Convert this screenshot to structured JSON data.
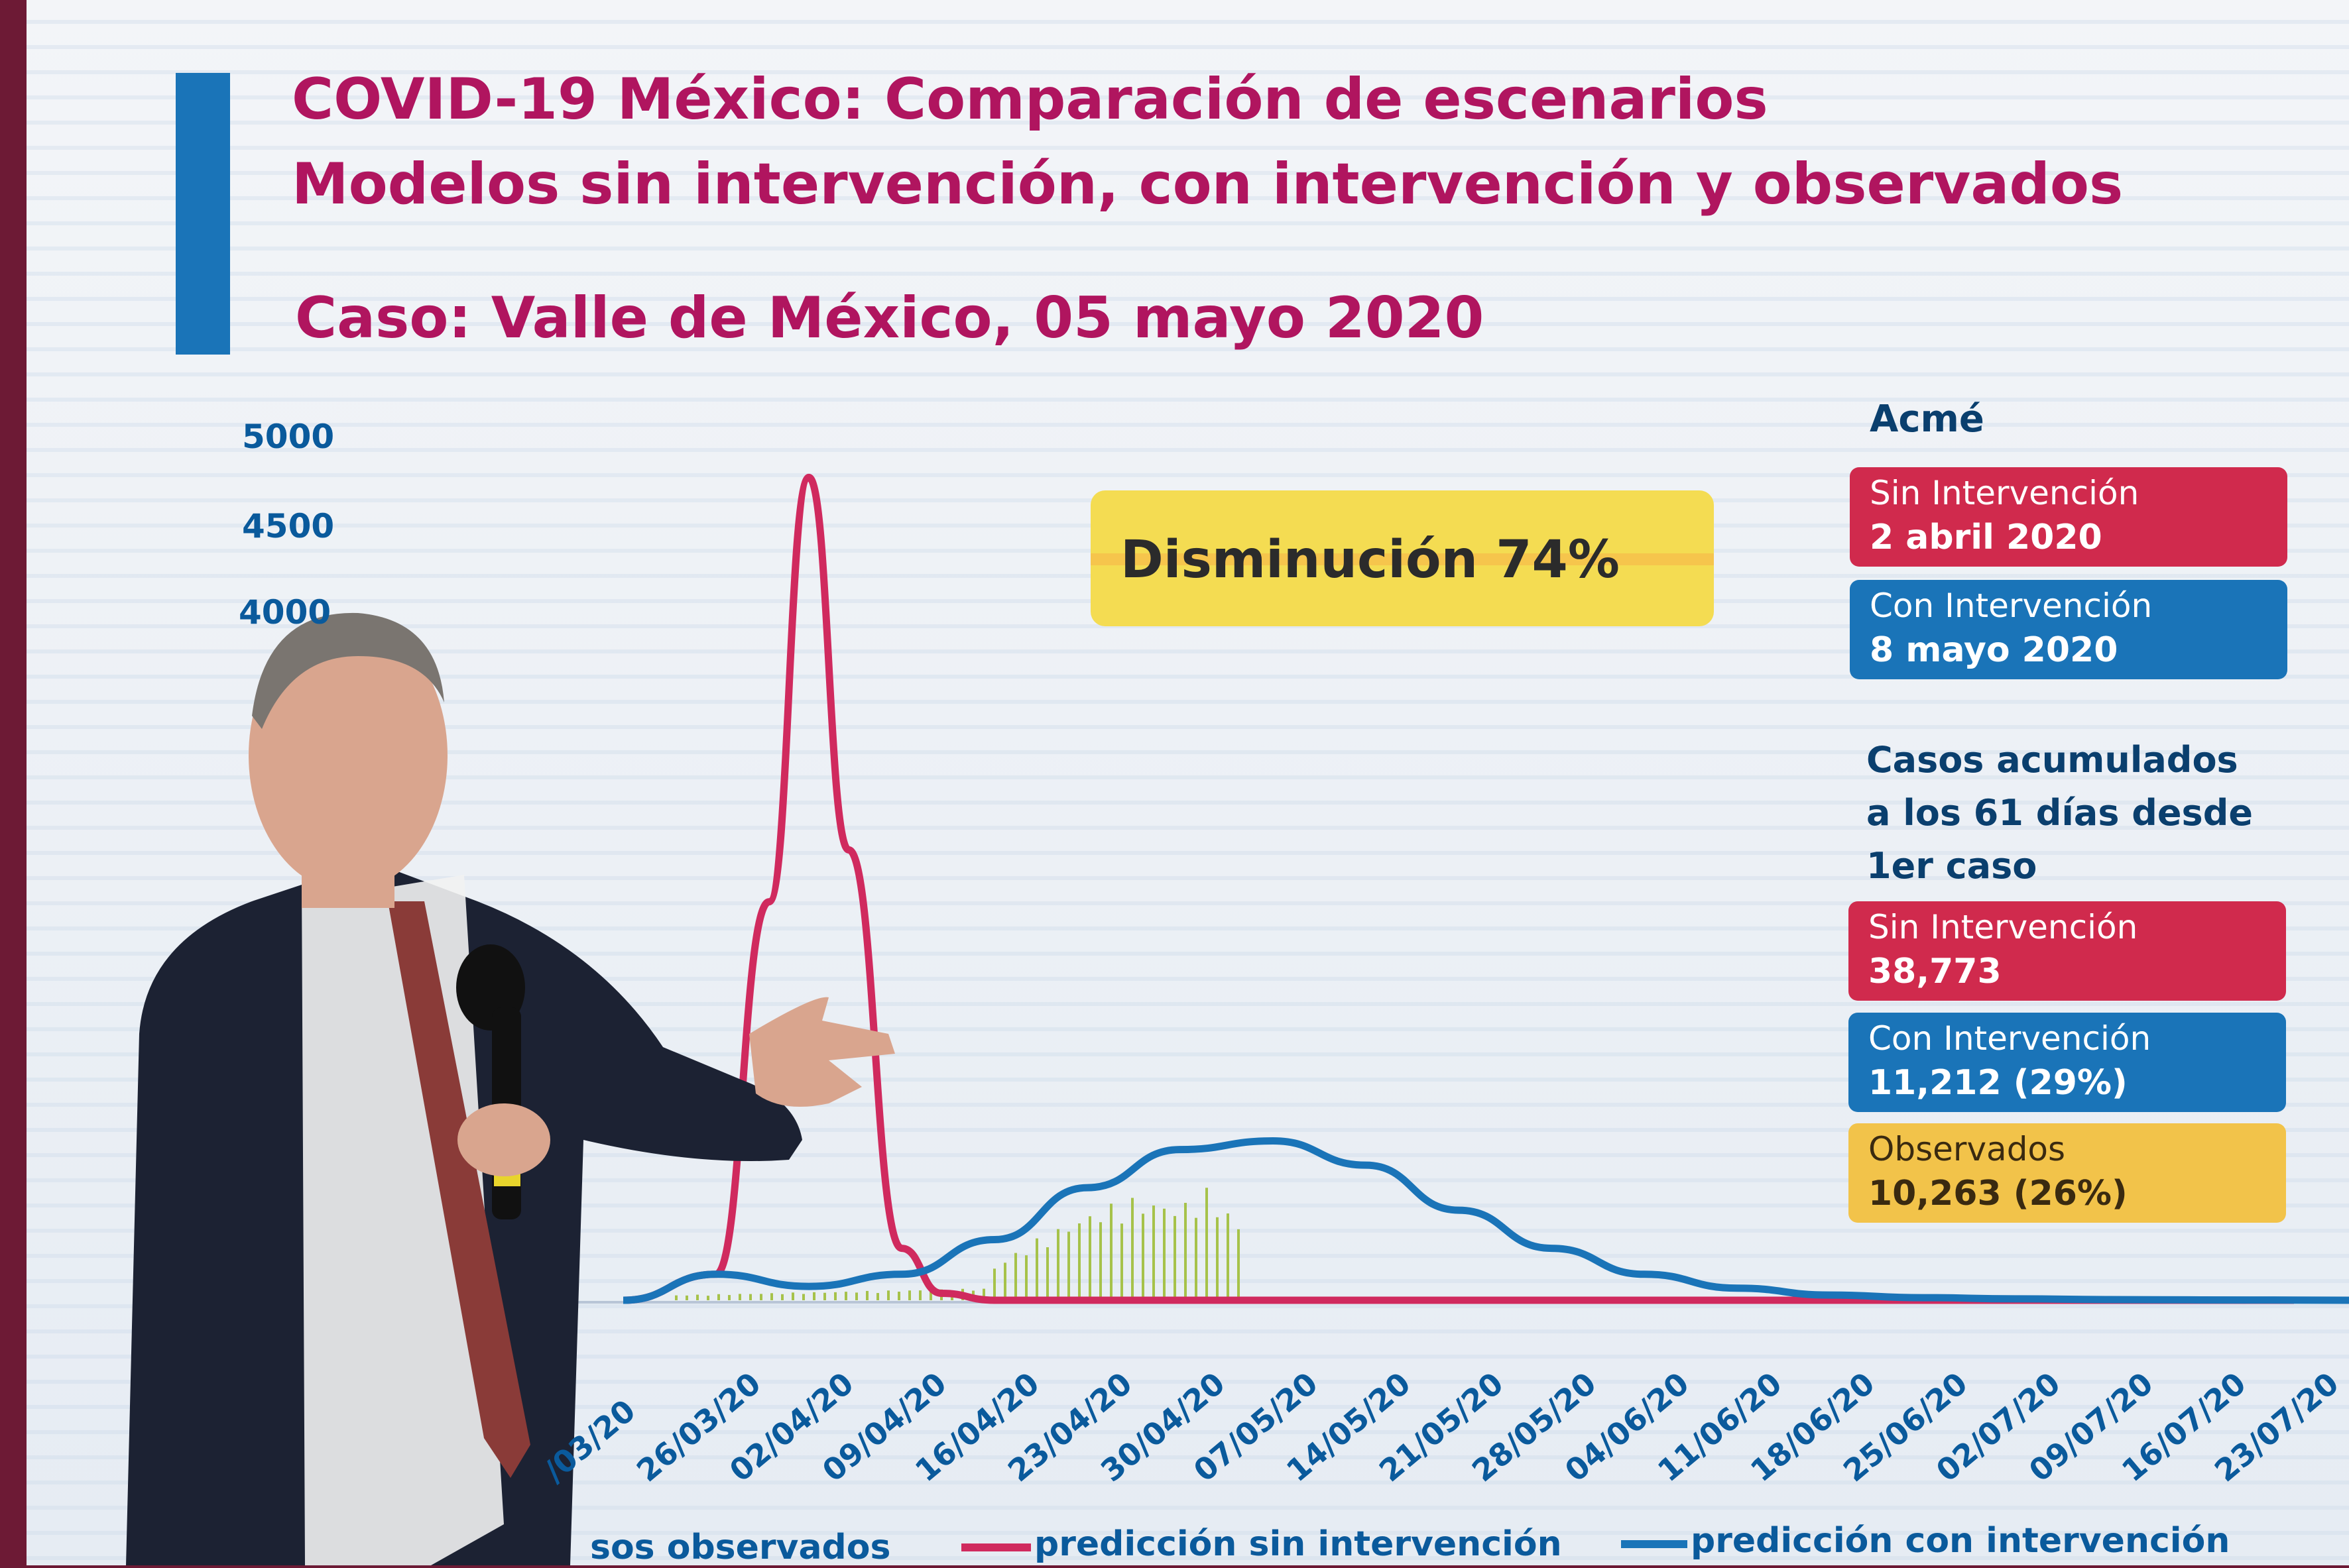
{
  "slide": {
    "title_line1": "COVID-19 México: Comparación de escenarios",
    "title_line2": "Modelos sin intervención, con intervención y observados",
    "subtitle": "Caso: Valle de México, 05 mayo 2020",
    "reduction_label": "Disminución 74%",
    "acme_heading": "Acmé",
    "acme_sin_label": "Sin Intervención",
    "acme_sin_value": "2 abril 2020",
    "acme_con_label": "Con Intervención",
    "acme_con_value": "8 mayo 2020",
    "cumulative_heading_1": "Casos acumulados",
    "cumulative_heading_2": "a los 61 días desde",
    "cumulative_heading_3": "1er caso",
    "cum_sin_label": "Sin Intervención",
    "cum_sin_value": "38,773",
    "cum_con_label": "Con Intervención",
    "cum_con_value": "11,212 (29%)",
    "cum_obs_label": "Observados",
    "cum_obs_value": "10,263 (26%)",
    "legend_observed": "sos observados",
    "legend_sin": "predicción sin intervención",
    "legend_con": "predicción con intervención",
    "colors": {
      "sin": "#d02a5e",
      "con": "#1a74b8",
      "observed": "#a6c24a",
      "title": "#b0155f",
      "axis_text": "#0a5a9c",
      "highlight": "#f4dc52"
    }
  },
  "chart_data": {
    "type": "line",
    "title": "COVID-19 México: Comparación de escenarios",
    "y_ticks": [
      "5000",
      "4500",
      "4000"
    ],
    "x_ticks": [
      "19/03/20",
      "26/03/20",
      "02/04/20",
      "09/04/20",
      "16/04/20",
      "23/04/20",
      "30/04/20",
      "07/05/20",
      "14/05/20",
      "21/05/20",
      "28/05/20",
      "04/06/20",
      "11/06/20",
      "18/06/20",
      "25/06/20",
      "02/07/20",
      "09/07/20",
      "16/07/20",
      "23/07/20"
    ],
    "x_ticks_visible": [
      "/03/20",
      "26/03/20",
      "02/04/20",
      "09/04/20",
      "16/04/20",
      "23/04/20",
      "30/04/20",
      "07/05/20",
      "14/05/20",
      "21/05/20",
      "28/05/20",
      "04/06/20",
      "11/06/20",
      "18/06/20",
      "25/06/20",
      "02/07/20",
      "09/07/20",
      "16/07/20",
      "23/07/20"
    ],
    "ylim": [
      0,
      5000
    ],
    "series": [
      {
        "name": "predicción sin intervención",
        "x": [
          "19/03/20",
          "26/03/20",
          "30/03/20",
          "02/04/20",
          "05/04/20",
          "09/04/20",
          "12/04/20",
          "16/04/20",
          "23/07/20"
        ],
        "values": [
          0,
          150,
          2300,
          4750,
          2600,
          300,
          40,
          0,
          0
        ]
      },
      {
        "name": "predicción con intervención",
        "x": [
          "19/03/20",
          "26/03/20",
          "02/04/20",
          "09/04/20",
          "16/04/20",
          "23/04/20",
          "30/04/20",
          "07/05/20",
          "14/05/20",
          "21/05/20",
          "28/05/20",
          "04/06/20",
          "11/06/20",
          "18/06/20",
          "25/06/20",
          "02/07/20",
          "09/07/20",
          "16/07/20",
          "23/07/20"
        ],
        "values": [
          0,
          150,
          80,
          150,
          350,
          650,
          870,
          920,
          780,
          520,
          300,
          150,
          70,
          30,
          15,
          8,
          4,
          2,
          1
        ]
      },
      {
        "name": "casos observados",
        "x": [
          "16/04/20",
          "19/04/20",
          "23/04/20",
          "26/04/20",
          "30/04/20",
          "02/05/20",
          "05/05/20"
        ],
        "values": [
          200,
          350,
          500,
          600,
          550,
          650,
          400
        ]
      }
    ],
    "legend_position": "bottom"
  }
}
